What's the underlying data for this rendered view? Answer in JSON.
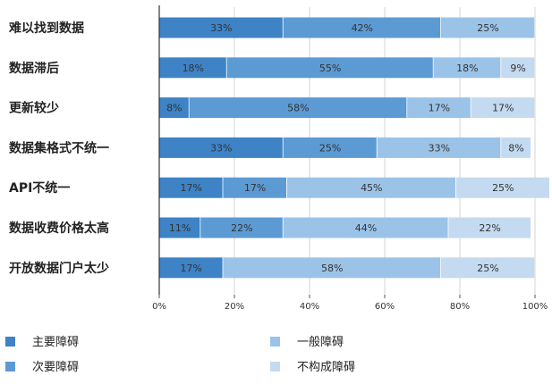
{
  "chart_data": {
    "type": "bar",
    "orientation": "horizontal",
    "stacked": true,
    "categories": [
      "难以找到数据",
      "数据滞后",
      "更新较少",
      "数据集格式不统一",
      "API不统一",
      "数据收费价格太高",
      "开放数据门户太少"
    ],
    "series": [
      {
        "name": "主要障碍",
        "color": "#3d83c6",
        "values": [
          33,
          18,
          8,
          33,
          17,
          11,
          17
        ]
      },
      {
        "name": "次要障碍",
        "color": "#5c9ad4",
        "values": [
          42,
          55,
          58,
          25,
          17,
          22,
          0
        ]
      },
      {
        "name": "一般障碍",
        "color": "#9bc3e8",
        "values": [
          25,
          18,
          17,
          33,
          45,
          44,
          58
        ]
      },
      {
        "name": "不构成障碍",
        "color": "#c3daf0",
        "values": [
          0,
          9,
          17,
          8,
          25,
          22,
          25
        ]
      }
    ],
    "xlim": [
      0,
      100
    ],
    "xticks": [
      "0%",
      "20%",
      "40%",
      "60%",
      "80%",
      "100%"
    ],
    "value_suffix": "%",
    "legend_position": "bottom",
    "grid": true
  }
}
